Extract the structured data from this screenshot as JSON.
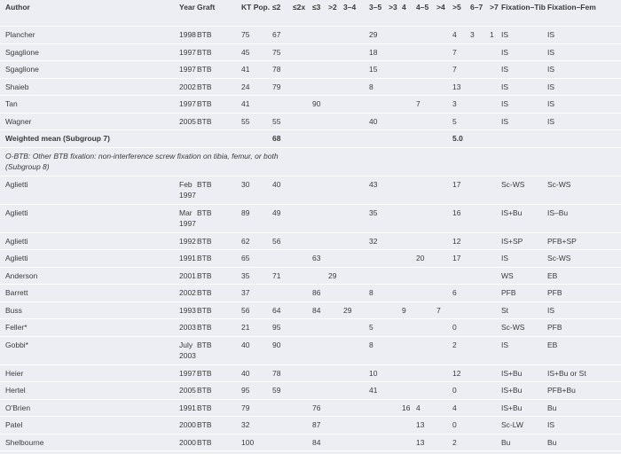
{
  "table": {
    "columns": [
      "Author",
      "Year",
      "Graft",
      "KT Pop.",
      "≤2",
      "≤2x",
      "≤3",
      ">2",
      "3–4",
      "3–5",
      ">3",
      "4",
      "4–5",
      ">4",
      ">5",
      "6–7",
      ">7",
      "Fixation–Tib",
      "Fixation–Fem"
    ],
    "rows": [
      {
        "cells": [
          "Plancher",
          "1998",
          "BTB",
          75,
          67,
          null,
          null,
          null,
          null,
          29,
          null,
          null,
          null,
          null,
          4,
          3,
          1,
          "IS",
          "IS"
        ]
      },
      {
        "cells": [
          "Sgaglione",
          "1997",
          "BTB",
          45,
          75,
          null,
          null,
          null,
          null,
          18,
          null,
          null,
          null,
          null,
          7,
          null,
          null,
          "IS",
          "IS"
        ]
      },
      {
        "cells": [
          "Sgaglione",
          "1997",
          "BTB",
          41,
          78,
          null,
          null,
          null,
          null,
          15,
          null,
          null,
          null,
          null,
          7,
          null,
          null,
          "IS",
          "IS"
        ]
      },
      {
        "cells": [
          "Shaieb",
          "2002",
          "BTB",
          24,
          79,
          null,
          null,
          null,
          null,
          8,
          null,
          null,
          null,
          null,
          13,
          null,
          null,
          "IS",
          "IS"
        ]
      },
      {
        "cells": [
          "Tan",
          "1997",
          "BTB",
          41,
          null,
          null,
          90,
          null,
          null,
          null,
          null,
          null,
          7,
          null,
          3,
          null,
          null,
          "IS",
          "IS"
        ]
      },
      {
        "cells": [
          "Wagner",
          "2005",
          "BTB",
          55,
          55,
          null,
          null,
          null,
          null,
          40,
          null,
          null,
          null,
          null,
          5,
          null,
          null,
          "IS",
          "IS"
        ]
      },
      {
        "bold": true,
        "cells": [
          "Weighted mean (Subgroup 7)",
          null,
          null,
          null,
          68,
          null,
          null,
          null,
          null,
          null,
          null,
          null,
          null,
          null,
          "5.0",
          null,
          null,
          null,
          null
        ]
      },
      {
        "section": "O-BTB: Other BTB fixation: non-interference screw fixation on tibia, femur, or both (Subgroup 8)"
      },
      {
        "cells": [
          "Aglietti",
          "Feb 1997",
          "BTB",
          30,
          40,
          null,
          null,
          null,
          null,
          43,
          null,
          null,
          null,
          null,
          17,
          null,
          null,
          "Sc-WS",
          "Sc-WS"
        ]
      },
      {
        "cells": [
          "Aglietti",
          "Mar 1997",
          "BTB",
          89,
          49,
          null,
          null,
          null,
          null,
          35,
          null,
          null,
          null,
          null,
          16,
          null,
          null,
          "IS+Bu",
          "IS–Bu"
        ]
      },
      {
        "cells": [
          "Aglietti",
          "1992",
          "BTB",
          62,
          56,
          null,
          null,
          null,
          null,
          32,
          null,
          null,
          null,
          null,
          12,
          null,
          null,
          "IS+SP",
          "PFB+SP"
        ]
      },
      {
        "cells": [
          "Aglietti",
          "1991",
          "BTB",
          65,
          null,
          null,
          63,
          null,
          null,
          null,
          null,
          null,
          20,
          null,
          17,
          null,
          null,
          "IS",
          "Sc-WS"
        ]
      },
      {
        "cells": [
          "Anderson",
          "2001",
          "BTB",
          35,
          71,
          null,
          null,
          29,
          null,
          null,
          null,
          null,
          null,
          null,
          null,
          null,
          null,
          "WS",
          "EB"
        ]
      },
      {
        "cells": [
          "Barrett",
          "2002",
          "BTB",
          37,
          null,
          null,
          86,
          null,
          null,
          8,
          null,
          null,
          null,
          null,
          6,
          null,
          null,
          "PFB",
          "PFB"
        ]
      },
      {
        "cells": [
          "Buss",
          "1993",
          "BTB",
          56,
          64,
          null,
          84,
          null,
          29,
          null,
          null,
          9,
          null,
          7,
          null,
          null,
          null,
          "St",
          "IS"
        ]
      },
      {
        "cells": [
          "Feller*",
          "2003",
          "BTB",
          21,
          95,
          null,
          null,
          null,
          null,
          5,
          null,
          null,
          null,
          null,
          0,
          null,
          null,
          "Sc-WS",
          "PFB"
        ]
      },
      {
        "cells": [
          "Gobbi*",
          "July 2003",
          "BTB",
          40,
          90,
          null,
          null,
          null,
          null,
          8,
          null,
          null,
          null,
          null,
          2,
          null,
          null,
          "IS",
          "EB"
        ]
      },
      {
        "cells": [
          "Heier",
          "1997",
          "BTB",
          40,
          78,
          null,
          null,
          null,
          null,
          10,
          null,
          null,
          null,
          null,
          12,
          null,
          null,
          "IS+Bu",
          "IS+Bu or St"
        ]
      },
      {
        "cells": [
          "Hertel",
          "2005",
          "BTB",
          95,
          59,
          null,
          null,
          null,
          null,
          41,
          null,
          null,
          null,
          null,
          0,
          null,
          null,
          "IS+Bu",
          "PFB+Bu"
        ]
      },
      {
        "cells": [
          "O'Brien",
          "1991",
          "BTB",
          79,
          null,
          null,
          76,
          null,
          null,
          null,
          null,
          16,
          4,
          null,
          4,
          null,
          null,
          "IS+Bu",
          "Bu"
        ]
      },
      {
        "cells": [
          "Patel",
          "2000",
          "BTB",
          32,
          null,
          null,
          87,
          null,
          null,
          null,
          null,
          null,
          13,
          null,
          0,
          null,
          null,
          "Sc-LW",
          "IS"
        ]
      },
      {
        "cells": [
          "Shelbourne",
          "2000",
          "BTB",
          100,
          null,
          null,
          84,
          null,
          null,
          null,
          null,
          null,
          13,
          null,
          2,
          null,
          null,
          "Bu",
          "Bu"
        ]
      }
    ]
  }
}
